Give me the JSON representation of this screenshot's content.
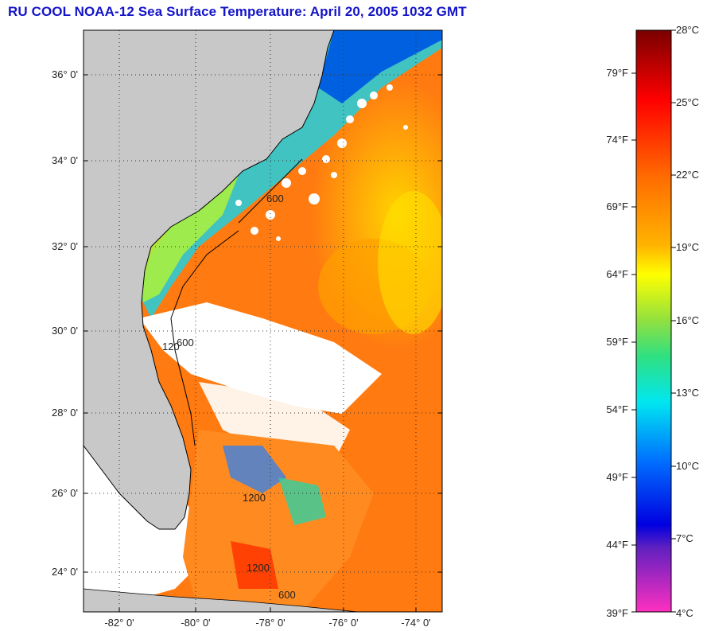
{
  "title": "RU COOL  NOAA-12  Sea Surface Temperature:  April 20, 2005 1032 GMT",
  "map": {
    "lat_labels": [
      "36° 0'",
      "34° 0'",
      "32° 0'",
      "30° 0'",
      "28° 0'",
      "26° 0'",
      "24° 0'"
    ],
    "lon_labels": [
      "-82° 0'",
      "-80° 0'",
      "-78° 0'",
      "-76° 0'",
      "-74° 0'"
    ],
    "contour_labels": [
      "600",
      "120",
      "600",
      "1200",
      "600",
      "1200"
    ],
    "land_color": "#c8c8c8",
    "cloud_color": "#ffffff"
  },
  "colorbar": {
    "celsius_labels": [
      "28°C",
      "25°C",
      "22°C",
      "19°C",
      "16°C",
      "13°C",
      "10°C",
      "7°C",
      "4°C"
    ],
    "fahrenheit_labels": [
      "79°F",
      "74°F",
      "69°F",
      "64°F",
      "59°F",
      "54°F",
      "49°F",
      "44°F",
      "39°F"
    ],
    "colors": [
      "#7a0000",
      "#ff1a00",
      "#ff7a00",
      "#ffff00",
      "#33e070",
      "#00e6f0",
      "#0050ff",
      "#0000c8",
      "#8000c0",
      "#ff30c0"
    ]
  }
}
